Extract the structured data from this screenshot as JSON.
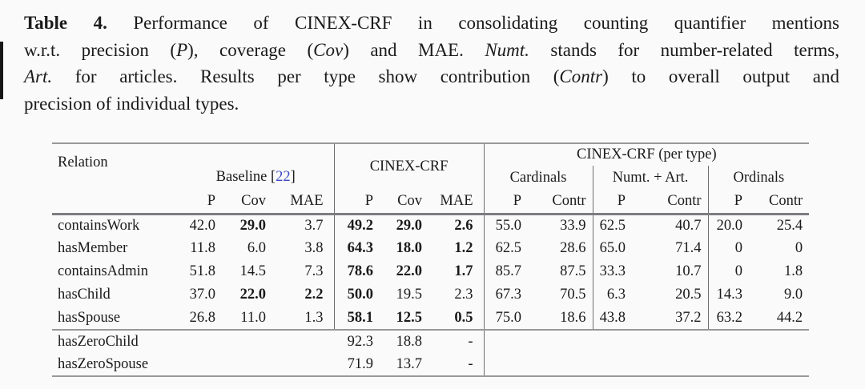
{
  "colors": {
    "background": "#fafafa",
    "text": "#1b1b1b",
    "citation_blue": "#3b49c4",
    "rule_gray": "#98989a",
    "heavy_rule_gray": "#7d7d80",
    "divider_gray": "#6e6e70"
  },
  "caption": {
    "lines": [
      {
        "segments": [
          {
            "text": "Table 4.",
            "style": "bold"
          },
          {
            "text": " Performance of CINEX-CRF in consolidating counting quantifier mentions",
            "style": "normal"
          }
        ]
      },
      {
        "segments": [
          {
            "text": "w.r.t. precision (",
            "style": "normal"
          },
          {
            "text": "P",
            "style": "italic"
          },
          {
            "text": "), coverage (",
            "style": "normal"
          },
          {
            "text": "Cov",
            "style": "italic"
          },
          {
            "text": ") and MAE. ",
            "style": "normal"
          },
          {
            "text": "Numt.",
            "style": "italic"
          },
          {
            "text": " stands for number-related terms,",
            "style": "normal"
          }
        ]
      },
      {
        "segments": [
          {
            "text": "Art.",
            "style": "italic"
          },
          {
            "text": " for articles. Results per type show contribution (",
            "style": "normal"
          },
          {
            "text": "Contr",
            "style": "italic"
          },
          {
            "text": ") to overall output and",
            "style": "normal"
          }
        ]
      },
      {
        "segments": [
          {
            "text": "precision of individual types.",
            "style": "normal"
          }
        ]
      }
    ]
  },
  "table": {
    "header": {
      "relation": "Relation",
      "baseline_label": "Baseline ",
      "cite_open": "[",
      "cite_number": "22",
      "cite_close": "]",
      "cinex": "CINEX-CRF",
      "pertype": "CINEX-CRF (per type)",
      "groups": [
        "Cardinals",
        "Numt. + Art.",
        "Ordinals"
      ],
      "sub": [
        "P",
        "Cov",
        "MAE",
        "P",
        "Cov",
        "MAE",
        "P",
        "Contr",
        "P",
        "Contr",
        "P",
        "Contr"
      ]
    },
    "body1": [
      {
        "relation": "containsWork",
        "cells": [
          {
            "v": "42.0"
          },
          {
            "v": "29.0",
            "b": true
          },
          {
            "v": "3.7"
          },
          {
            "v": "49.2",
            "b": true
          },
          {
            "v": "29.0",
            "b": true
          },
          {
            "v": "2.6",
            "b": true
          },
          {
            "v": "55.0"
          },
          {
            "v": "33.9"
          },
          {
            "v": "62.5"
          },
          {
            "v": "40.7"
          },
          {
            "v": "20.0"
          },
          {
            "v": "25.4"
          }
        ]
      },
      {
        "relation": "hasMember",
        "cells": [
          {
            "v": "11.8"
          },
          {
            "v": "6.0"
          },
          {
            "v": "3.8"
          },
          {
            "v": "64.3",
            "b": true
          },
          {
            "v": "18.0",
            "b": true
          },
          {
            "v": "1.2",
            "b": true
          },
          {
            "v": "62.5"
          },
          {
            "v": "28.6"
          },
          {
            "v": "65.0"
          },
          {
            "v": "71.4"
          },
          {
            "v": "0"
          },
          {
            "v": "0"
          }
        ]
      },
      {
        "relation": "containsAdmin",
        "cells": [
          {
            "v": "51.8"
          },
          {
            "v": "14.5"
          },
          {
            "v": "7.3"
          },
          {
            "v": "78.6",
            "b": true
          },
          {
            "v": "22.0",
            "b": true
          },
          {
            "v": "1.7",
            "b": true
          },
          {
            "v": "85.7"
          },
          {
            "v": "87.5"
          },
          {
            "v": "33.3"
          },
          {
            "v": "10.7"
          },
          {
            "v": "0"
          },
          {
            "v": "1.8"
          }
        ]
      },
      {
        "relation": "hasChild",
        "cells": [
          {
            "v": "37.0"
          },
          {
            "v": "22.0",
            "b": true
          },
          {
            "v": "2.2",
            "b": true
          },
          {
            "v": "50.0",
            "b": true
          },
          {
            "v": "19.5"
          },
          {
            "v": "2.3"
          },
          {
            "v": "67.3"
          },
          {
            "v": "70.5"
          },
          {
            "v": "6.3"
          },
          {
            "v": "20.5"
          },
          {
            "v": "14.3"
          },
          {
            "v": "9.0"
          }
        ]
      },
      {
        "relation": "hasSpouse",
        "cells": [
          {
            "v": "26.8"
          },
          {
            "v": "11.0"
          },
          {
            "v": "1.3"
          },
          {
            "v": "58.1",
            "b": true
          },
          {
            "v": "12.5",
            "b": true
          },
          {
            "v": "0.5",
            "b": true
          },
          {
            "v": "75.0"
          },
          {
            "v": "18.6"
          },
          {
            "v": "43.8"
          },
          {
            "v": "37.2"
          },
          {
            "v": "63.2"
          },
          {
            "v": "44.2"
          }
        ]
      }
    ],
    "body2": [
      {
        "relation": "hasZeroChild",
        "cells": [
          {
            "v": ""
          },
          {
            "v": ""
          },
          {
            "v": ""
          },
          {
            "v": "92.3"
          },
          {
            "v": "18.8"
          },
          {
            "v": "-"
          },
          {
            "v": ""
          },
          {
            "v": ""
          },
          {
            "v": ""
          },
          {
            "v": ""
          },
          {
            "v": ""
          },
          {
            "v": ""
          }
        ]
      },
      {
        "relation": "hasZeroSpouse",
        "cells": [
          {
            "v": ""
          },
          {
            "v": ""
          },
          {
            "v": ""
          },
          {
            "v": "71.9"
          },
          {
            "v": "13.7"
          },
          {
            "v": "-"
          },
          {
            "v": ""
          },
          {
            "v": ""
          },
          {
            "v": ""
          },
          {
            "v": ""
          },
          {
            "v": ""
          },
          {
            "v": ""
          }
        ]
      }
    ]
  }
}
